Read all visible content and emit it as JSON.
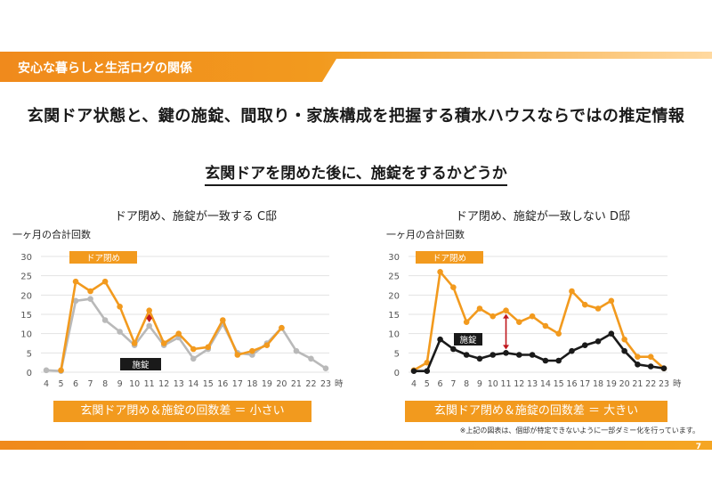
{
  "header": {
    "title": "安心な暮らしと生活ログの関係"
  },
  "headline": "玄関ドア状態と、鍵の施錠、間取り・家族構成を把握する積水ハウスならではの推定情報",
  "subheadline": "玄関ドアを閉めた後に、施錠をするかどうか",
  "unit_label": "一ヶ月の合計回数",
  "footnote": "※上記の図表は、個邸が特定できないように一部ダミー化を行っています。",
  "page_number": "7",
  "colors": {
    "orange": "#f29a1e",
    "gray": "#b9b9b9",
    "black": "#1a1a1a",
    "red": "#c0171d",
    "header_orange": "#f08a1c"
  },
  "chart_data": [
    {
      "type": "line",
      "title": "ドア閉め、施錠が一致する C邸",
      "x": [
        4,
        5,
        6,
        7,
        8,
        9,
        10,
        11,
        12,
        13,
        14,
        15,
        16,
        17,
        18,
        19,
        20,
        21,
        22,
        23
      ],
      "x_suffix": "時",
      "ylim": [
        0,
        30
      ],
      "yticks": [
        0,
        5,
        10,
        15,
        20,
        25,
        30
      ],
      "series": [
        {
          "name": "ドア閉め",
          "color": "#f29a1e",
          "values": [
            null,
            0.5,
            23.5,
            21,
            23.5,
            17,
            7.5,
            16,
            7.5,
            10,
            6,
            6.5,
            13.5,
            4.5,
            5.5,
            7,
            11.5,
            null,
            null,
            null
          ]
        },
        {
          "name": "施錠",
          "color": "#b9b9b9",
          "values": [
            0.5,
            0.3,
            18.5,
            19,
            13.5,
            10.5,
            7,
            12,
            7,
            9,
            3.5,
            6,
            12.5,
            5,
            4.5,
            7.5,
            11.5,
            5.5,
            3.5,
            1
          ]
        }
      ],
      "arrow_at_x": 11,
      "summary": "玄関ドア閉め＆施錠の回数差 ＝ 小さい"
    },
    {
      "type": "line",
      "title": "ドア閉め、施錠が一致しない D邸",
      "x": [
        4,
        5,
        6,
        7,
        8,
        9,
        10,
        11,
        12,
        13,
        14,
        15,
        16,
        17,
        18,
        19,
        20,
        21,
        22,
        23
      ],
      "x_suffix": "時",
      "ylim": [
        0,
        30
      ],
      "yticks": [
        0,
        5,
        10,
        15,
        20,
        25,
        30
      ],
      "series": [
        {
          "name": "ドア閉め",
          "color": "#f29a1e",
          "values": [
            0.5,
            2.5,
            26,
            22,
            13,
            16.5,
            14.5,
            16,
            13,
            14.5,
            12,
            10,
            21,
            17.5,
            16.5,
            18.5,
            8.5,
            4,
            4,
            1
          ]
        },
        {
          "name": "施錠",
          "color": "#1a1a1a",
          "values": [
            0.3,
            0.3,
            8.5,
            6,
            4.5,
            3.5,
            4.5,
            5,
            4.5,
            4.5,
            3,
            3,
            5.5,
            7,
            8,
            10,
            5.5,
            2,
            1.5,
            1
          ]
        }
      ],
      "arrow_at_x": 11,
      "summary": "玄関ドア閉め＆施錠の回数差 ＝ 大きい"
    }
  ]
}
